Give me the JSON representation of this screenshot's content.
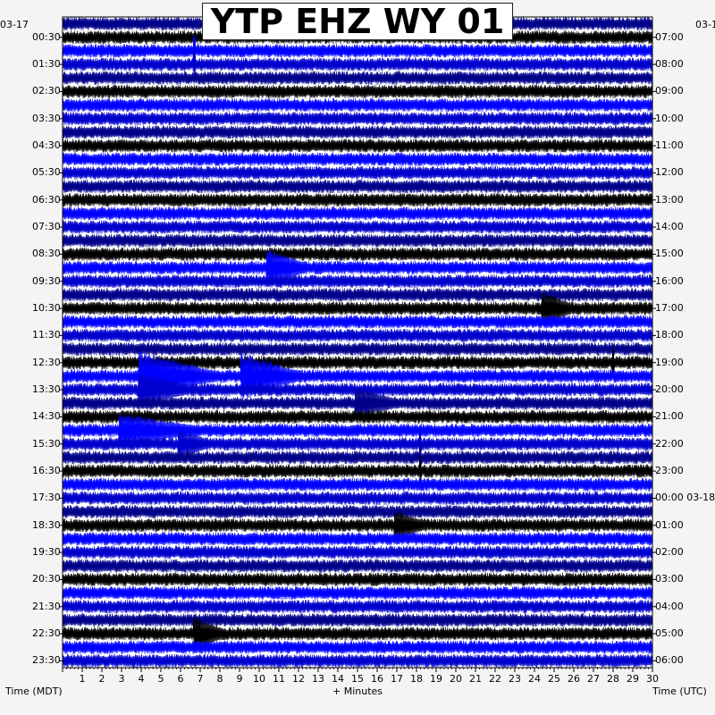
{
  "title": "YTP EHZ WY 01",
  "chart_data": {
    "type": "heatmap",
    "plot": "helicorder",
    "title": "YTP EHZ WY 01",
    "xlabel": "+ Minutes",
    "left_axis_label": "Time (MDT)",
    "right_axis_label": "Time (UTC)",
    "date_left_start": "03-17",
    "date_right_start": "03-1",
    "date_right_change": "03-18",
    "x_ticks": [
      1,
      2,
      3,
      4,
      5,
      6,
      7,
      8,
      9,
      10,
      11,
      12,
      13,
      14,
      15,
      16,
      17,
      18,
      19,
      20,
      21,
      22,
      23,
      24,
      25,
      26,
      27,
      28,
      29,
      30
    ],
    "xlim": [
      0,
      30
    ],
    "rows_per_hour": 2,
    "num_rows": 48,
    "trace_colors": [
      "#00008b",
      "#000000",
      "#0000ff",
      "#0000cd"
    ],
    "left_labels": [
      "00:30",
      "01:30",
      "02:30",
      "03:30",
      "04:30",
      "05:30",
      "06:30",
      "07:30",
      "08:30",
      "09:30",
      "10:30",
      "11:30",
      "12:30",
      "13:30",
      "14:30",
      "15:30",
      "16:30",
      "17:30",
      "18:30",
      "19:30",
      "20:30",
      "21:30",
      "22:30",
      "23:30"
    ],
    "right_labels": [
      "07:00",
      "08:00",
      "09:00",
      "10:00",
      "11:00",
      "12:00",
      "13:00",
      "14:00",
      "15:00",
      "16:00",
      "17:00",
      "18:00",
      "19:00",
      "20:00",
      "21:00",
      "22:00",
      "23:00",
      "00:00 03-18",
      "01:00",
      "02:00",
      "03:00",
      "04:00",
      "05:00",
      "06:00"
    ],
    "events": [
      {
        "row": 18,
        "minute": 10.5,
        "amplitude": 2.2,
        "duration_min": 2.0
      },
      {
        "row": 21,
        "minute": 24.5,
        "amplitude": 2.0,
        "duration_min": 1.5
      },
      {
        "row": 26,
        "minute": 4.0,
        "amplitude": 3.2,
        "duration_min": 4.0
      },
      {
        "row": 26,
        "minute": 9.2,
        "amplitude": 3.0,
        "duration_min": 3.0
      },
      {
        "row": 27,
        "minute": 4.0,
        "amplitude": 2.0,
        "duration_min": 2.5
      },
      {
        "row": 28,
        "minute": 15.0,
        "amplitude": 1.8,
        "duration_min": 2.0
      },
      {
        "row": 30,
        "minute": 3.0,
        "amplitude": 2.0,
        "duration_min": 4.0
      },
      {
        "row": 31,
        "minute": 6.0,
        "amplitude": 1.6,
        "duration_min": 1.5
      },
      {
        "row": 37,
        "minute": 17.0,
        "amplitude": 1.6,
        "duration_min": 1.5
      },
      {
        "row": 45,
        "minute": 6.8,
        "amplitude": 2.0,
        "duration_min": 1.5
      }
    ],
    "spikes": [
      {
        "row": 2,
        "minute": 6.7
      },
      {
        "row": 3,
        "minute": 6.7
      },
      {
        "row": 25,
        "minute": 28.0
      },
      {
        "row": 31,
        "minute": 18.2
      },
      {
        "row": 32,
        "minute": 18.2
      },
      {
        "row": 33,
        "minute": 18.2
      }
    ]
  }
}
